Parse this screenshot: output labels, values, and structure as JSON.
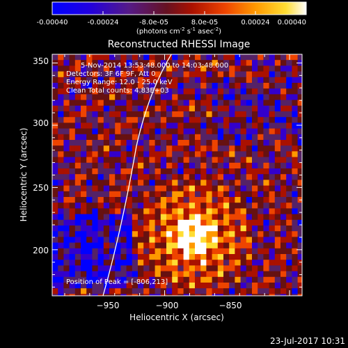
{
  "colorbar": {
    "ticks": [
      "-0.00040",
      "-0.00024",
      "-8.0e-05",
      "8.0e-05",
      "0.00024",
      "0.00040"
    ],
    "unit_main": "(photons cm",
    "unit_sup1": "-2",
    "unit_mid": " s",
    "unit_sup2": "-1",
    "unit_after": " asec",
    "unit_sup3": "-2",
    "unit_end": ")",
    "range": [
      -0.0004,
      0.0004
    ]
  },
  "chart_data": {
    "type": "heatmap",
    "title": "Reconstructed RHESSI Image",
    "xlabel": "Heliocentric X (arcsec)",
    "ylabel": "Heliocentric Y (arcsec)",
    "xlim": [
      -995,
      -895
    ],
    "ylim": [
      163,
      357
    ],
    "x_ticks": [
      -950,
      -900,
      -850
    ],
    "x_tick_labels": [
      "−950",
      "−900",
      "−850"
    ],
    "y_ticks": [
      200,
      250,
      300,
      350
    ],
    "y_tick_labels": [
      "200",
      "250",
      "300",
      "350"
    ],
    "annotations": [
      "5-Nov-2014 13:53:48.000 to 14:03:48.000",
      "Detectors: 3F 6F 9F, Att 0",
      "Energy Range: 12.0 - 25.0 keV",
      "Clean    Total counts: 4.83E+03"
    ],
    "peak_label": "Position of Peak = [-806,213]",
    "peak_position": [
      -806,
      213
    ],
    "colormap": [
      "#0000ff",
      "#3300cc",
      "#552266",
      "#661111",
      "#aa1100",
      "#ee4400",
      "#ff9900",
      "#ffdd33",
      "#ffffff"
    ]
  },
  "footer": {
    "timestamp": "23-Jul-2017 10:31"
  }
}
